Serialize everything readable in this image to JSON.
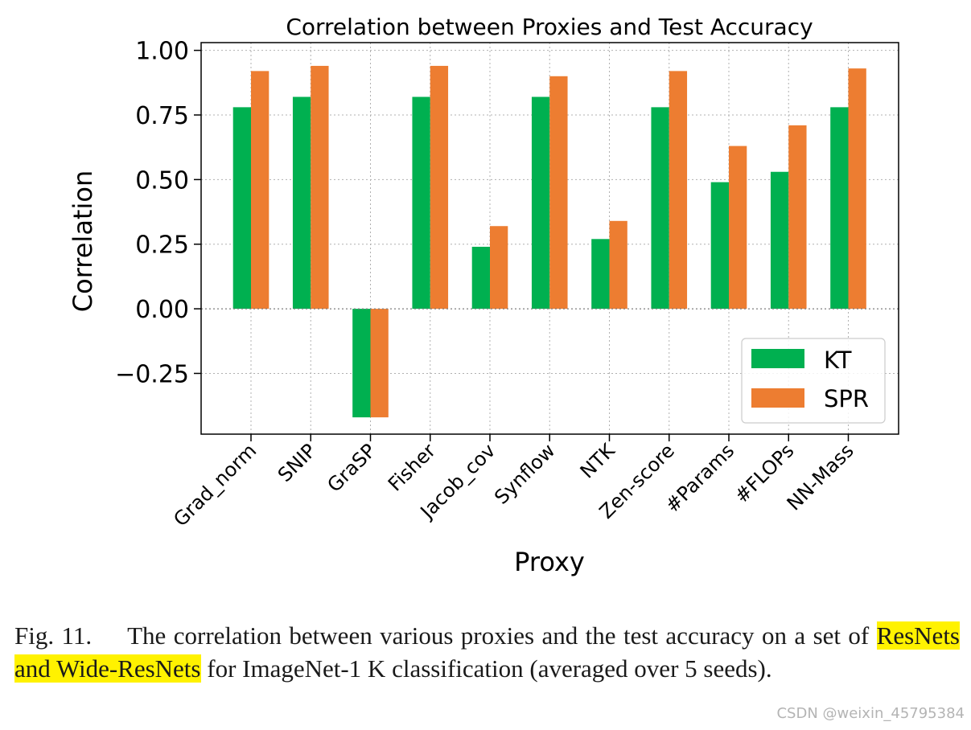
{
  "chart_data": {
    "type": "bar",
    "title": "Correlation between Proxies and Test Accuracy",
    "xlabel": "Proxy",
    "ylabel": "Correlation",
    "categories": [
      "Grad_norm",
      "SNIP",
      "GraSP",
      "Fisher",
      "Jacob_cov",
      "Synflow",
      "NTK",
      "Zen-score",
      "#Params",
      "#FLOPs",
      "NN-Mass"
    ],
    "series": [
      {
        "name": "KT",
        "color": "#00b050",
        "values": [
          0.78,
          0.82,
          -0.42,
          0.82,
          0.24,
          0.82,
          0.27,
          0.78,
          0.49,
          0.53,
          0.78
        ]
      },
      {
        "name": "SPR",
        "color": "#ed7d31",
        "values": [
          0.92,
          0.94,
          -0.42,
          0.94,
          0.32,
          0.9,
          0.34,
          0.92,
          0.63,
          0.71,
          0.93
        ]
      }
    ],
    "ylim": [
      -0.485,
      1.03
    ],
    "yticks": [
      -0.25,
      0.0,
      0.25,
      0.5,
      0.75,
      1.0
    ],
    "ytick_labels": [
      "−0.25",
      "0.00",
      "0.25",
      "0.50",
      "0.75",
      "1.00"
    ],
    "grid": true,
    "legend": "lower-right"
  },
  "caption": {
    "label": "Fig. 11.",
    "text_before": "The correlation between various proxies and the test accuracy on a set of ",
    "highlight": "ResNets and Wide-ResNets",
    "text_after": " for ImageNet-1 K classification (averaged over 5 seeds)."
  },
  "watermark": "CSDN @weixin_45795384"
}
